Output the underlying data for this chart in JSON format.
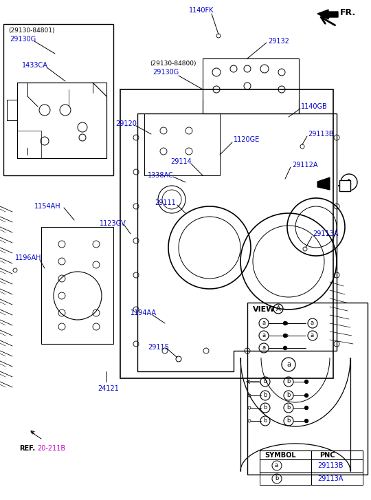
{
  "bg_color": "#ffffff",
  "line_color": "#000000",
  "blue_color": "#0000cc",
  "magenta_color": "#cc00cc",
  "fig_width": 5.4,
  "fig_height": 7.27,
  "dpi": 100,
  "labels": {
    "FR": "FR.",
    "1140FK": "1140FK",
    "29132": "29132",
    "1140GB": "1140GB",
    "29113B": "29113B",
    "29130_84800": "(29130-84800)",
    "29130G_2": "29130G",
    "1120GE": "1120GE",
    "29112A": "29112A",
    "29114": "29114",
    "1338AC": "1338AC",
    "29120": "29120",
    "29111": "29111",
    "1154AH": "1154AH",
    "1123GV": "1123GV",
    "1196AH": "1196AH",
    "1194AA": "1194AA",
    "29115": "29115",
    "24121": "24121",
    "29113A": "29113A",
    "29130_84801": "(29130-84801)",
    "29130G_1": "29130G",
    "1433CA": "1433CA",
    "REF": "REF.",
    "20_211B": "20-211B",
    "VIEW_A": "VIEW",
    "SYMBOL": "SYMBOL",
    "PNC": "PNC",
    "a_sym": "a",
    "b_sym": "b",
    "29113B_val": "29113B",
    "29113A_val": "29113A"
  }
}
